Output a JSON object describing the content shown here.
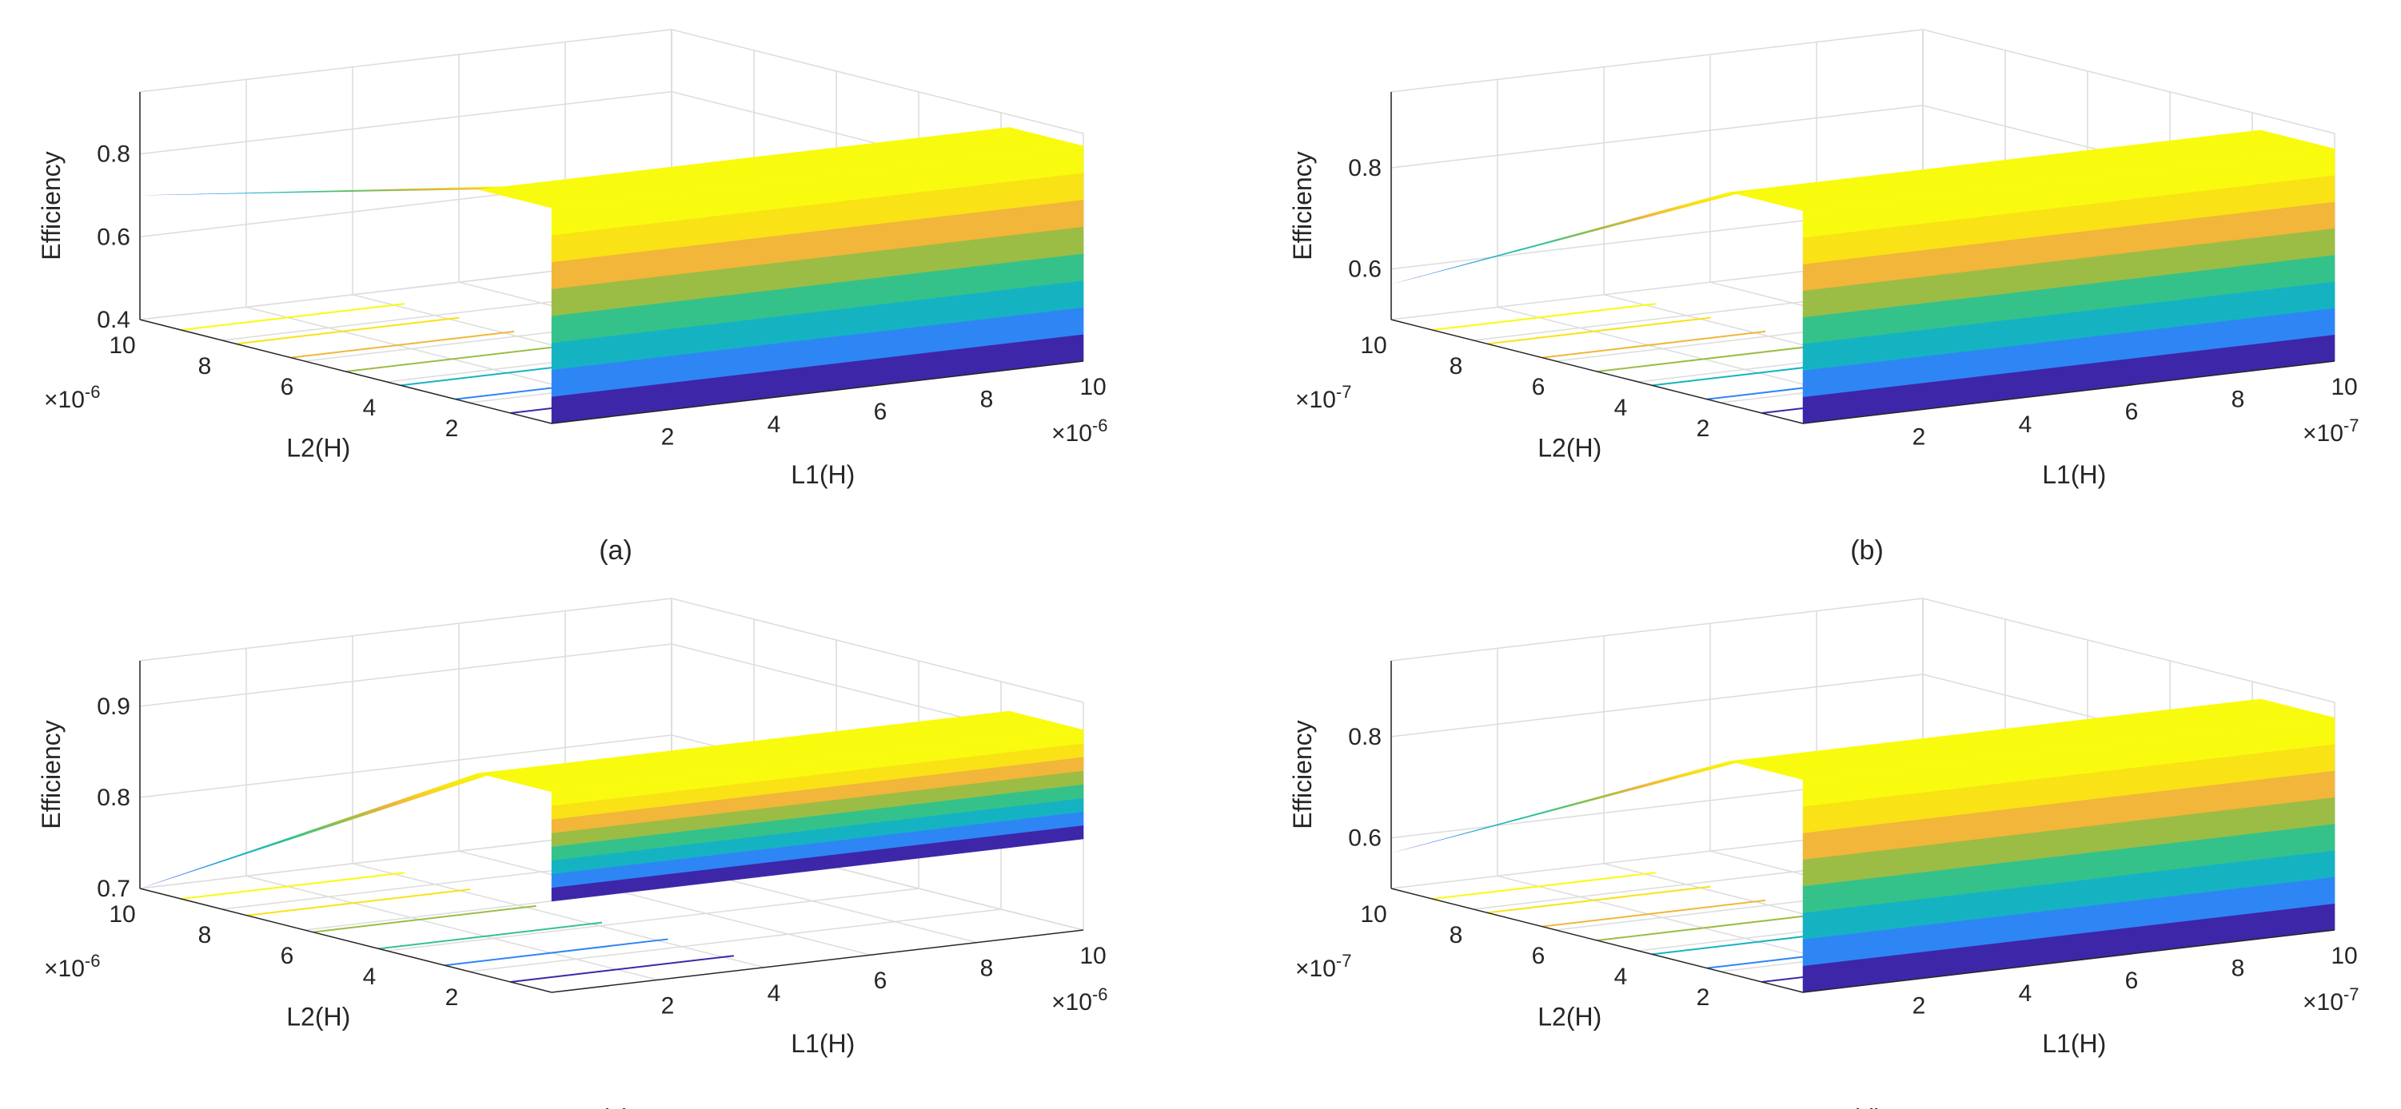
{
  "figure": {
    "description_free": true
  },
  "colormap": [
    "#3e26a8",
    "#2e86f5",
    "#15b3c2",
    "#35c28a",
    "#9bbd45",
    "#f2b63a",
    "#f9e216",
    "#f9fb0e"
  ],
  "colors": {
    "grid": "#dcdcdc",
    "axis": "#262626",
    "text": "#262626"
  },
  "chart_data": [
    {
      "type": "surface3d",
      "panel_label": "(a)",
      "zlabel": "Efficiency",
      "xlabel": "L1(H)",
      "ylabel": "L2(H)",
      "x_exponent": "×10",
      "x_exponent_power": "-6",
      "y_exponent": "×10",
      "y_exponent_power": "-6",
      "x_ticks": [
        "2",
        "4",
        "6",
        "8",
        "10"
      ],
      "y_ticks": [
        "2",
        "4",
        "6",
        "8",
        "10"
      ],
      "z_ticks": [
        "0.4",
        "0.6",
        "0.8"
      ],
      "z_range": [
        0.4,
        0.95
      ],
      "x_range": [
        0,
        1e-05
      ],
      "y_range": [
        0,
        1e-05
      ],
      "surface": {
        "z_plateau": 0.92,
        "z_floor": 0.4,
        "z_back_ramp": 0.7,
        "surface_shape": "step_at_x0"
      },
      "contours": [
        0.45,
        0.5,
        0.55,
        0.6,
        0.65,
        0.7,
        0.75
      ]
    },
    {
      "type": "surface3d",
      "panel_label": "(b)",
      "zlabel": "Efficiency",
      "xlabel": "L1(H)",
      "ylabel": "L2(H)",
      "x_exponent": "×10",
      "x_exponent_power": "-7",
      "y_exponent": "×10",
      "y_exponent_power": "-7",
      "x_ticks": [
        "2",
        "4",
        "6",
        "8",
        "10"
      ],
      "y_ticks": [
        "2",
        "4",
        "6",
        "8",
        "10"
      ],
      "z_ticks": [
        "0.6",
        "0.8"
      ],
      "z_range": [
        0.5,
        0.95
      ],
      "x_range": [
        0,
        1e-06
      ],
      "y_range": [
        0,
        1e-06
      ],
      "surface": {
        "z_plateau": 0.92,
        "z_floor": 0.5,
        "z_back_ramp": 0.57,
        "surface_shape": "step_at_x0"
      },
      "contours": [
        0.55,
        0.6,
        0.65,
        0.7,
        0.75,
        0.8,
        0.85
      ]
    },
    {
      "type": "surface3d",
      "panel_label": "(c)",
      "zlabel": "Efficiency",
      "xlabel": "L1(H)",
      "ylabel": "L2(H)",
      "x_exponent": "×10",
      "x_exponent_power": "-6",
      "y_exponent": "×10",
      "y_exponent_power": "-6",
      "x_ticks": [
        "2",
        "4",
        "6",
        "8",
        "10"
      ],
      "y_ticks": [
        "2",
        "4",
        "6",
        "8",
        "10"
      ],
      "z_ticks": [
        "0.7",
        "0.8",
        "0.9"
      ],
      "z_range": [
        0.7,
        0.95
      ],
      "x_range": [
        0,
        1e-05
      ],
      "y_range": [
        0,
        1e-05
      ],
      "surface": {
        "z_plateau": 0.92,
        "z_floor": 0.8,
        "z_back_ramp": 0.7,
        "surface_shape": "step_at_x0"
      },
      "contours": [
        0.72,
        0.75,
        0.78,
        0.81,
        0.84,
        0.87
      ]
    },
    {
      "type": "surface3d",
      "panel_label": "(d)",
      "zlabel": "Efficiency",
      "xlabel": "L1(H)",
      "ylabel": "L2(H)",
      "x_exponent": "×10",
      "x_exponent_power": "-7",
      "y_exponent": "×10",
      "y_exponent_power": "-7",
      "x_ticks": [
        "2",
        "4",
        "6",
        "8",
        "10"
      ],
      "y_ticks": [
        "2",
        "4",
        "6",
        "8",
        "10"
      ],
      "z_ticks": [
        "0.6",
        "0.8"
      ],
      "z_range": [
        0.5,
        0.95
      ],
      "x_range": [
        0,
        1e-06
      ],
      "y_range": [
        0,
        1e-06
      ],
      "surface": {
        "z_plateau": 0.92,
        "z_floor": 0.5,
        "z_back_ramp": 0.57,
        "surface_shape": "step_at_x0"
      },
      "contours": [
        0.55,
        0.6,
        0.65,
        0.7,
        0.75,
        0.8,
        0.85
      ]
    }
  ]
}
